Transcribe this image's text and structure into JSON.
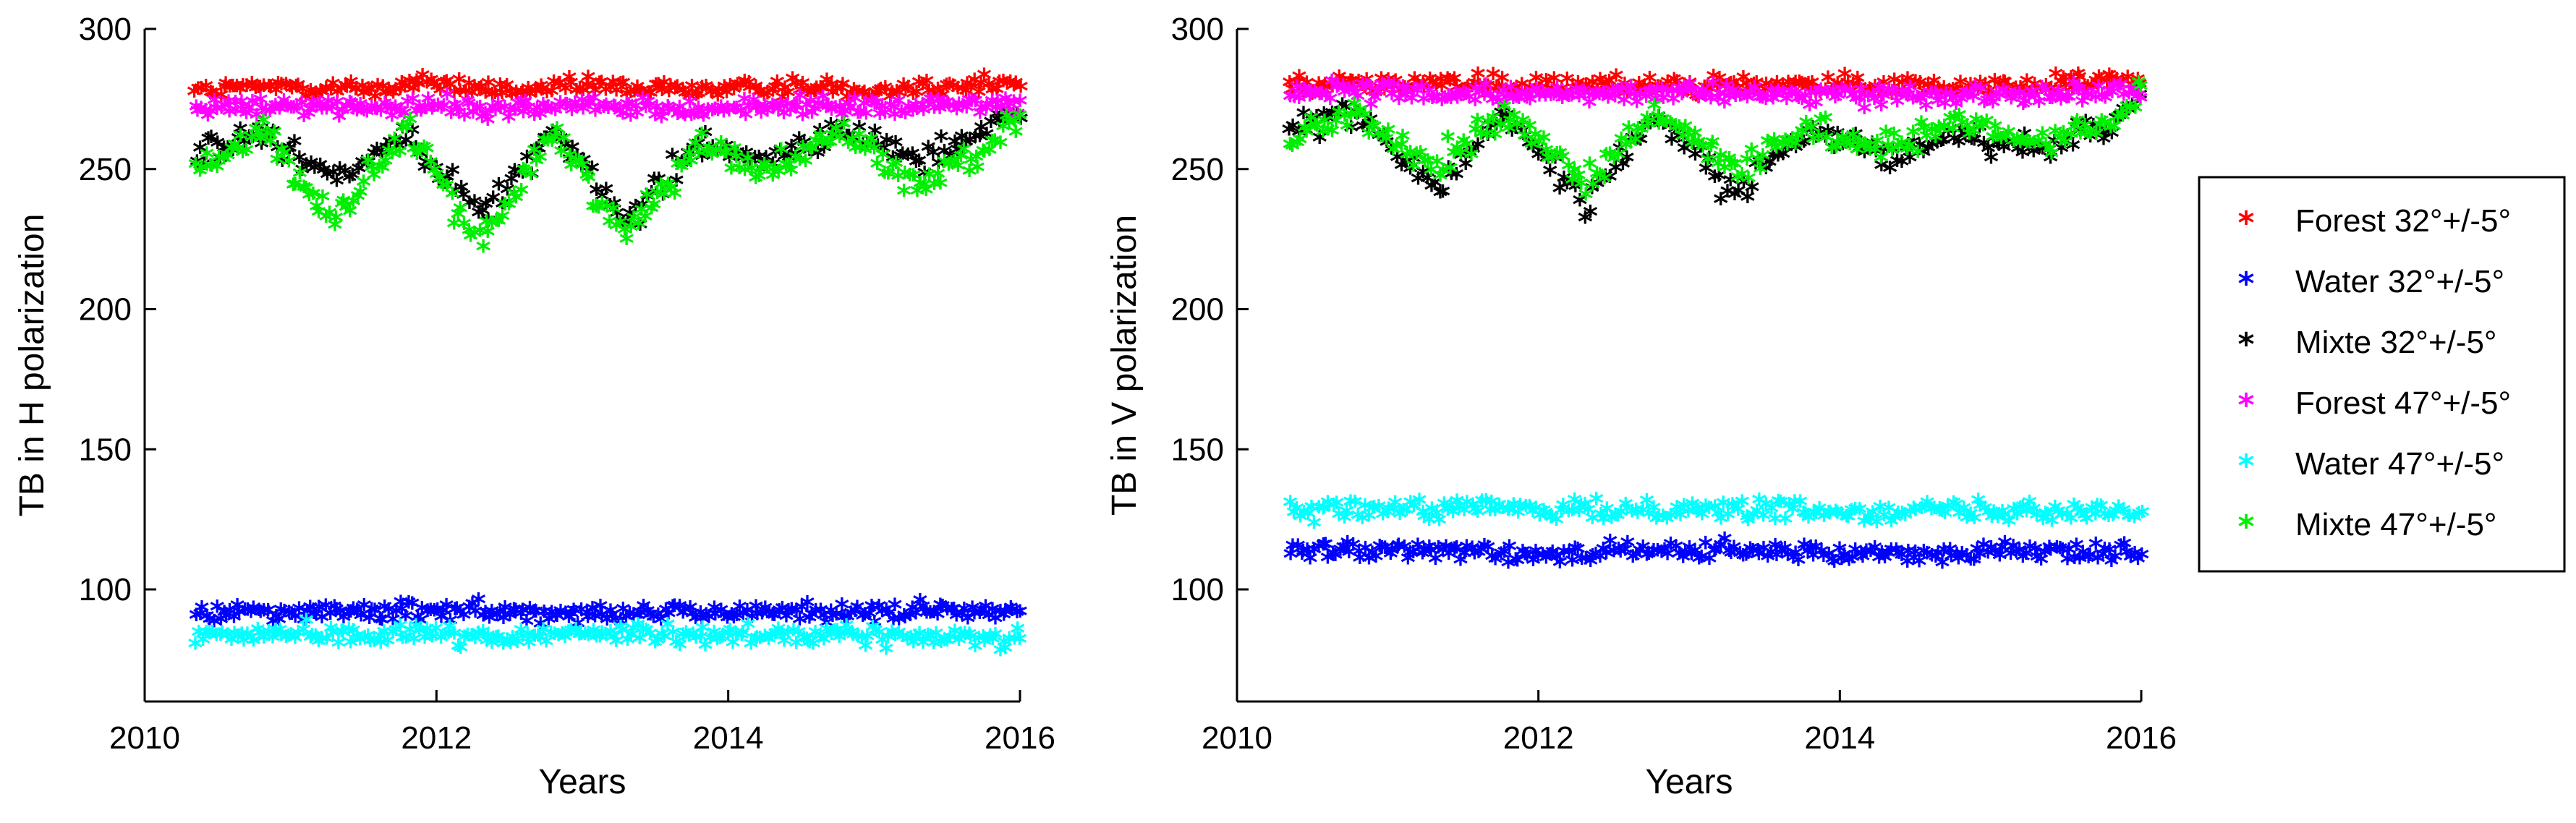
{
  "chart_data": [
    {
      "type": "scatter",
      "xlabel": "Years",
      "ylabel": "TB in H polarization",
      "xlim": [
        2010,
        2016
      ],
      "ylim": [
        60,
        300
      ],
      "xticks": [
        "2010",
        "2012",
        "2014",
        "2016"
      ],
      "yticks": [
        "100",
        "150",
        "200",
        "250",
        "300"
      ],
      "series": [
        {
          "name": "Forest 32°+/-5°",
          "color": "#ff0000",
          "marker": "*",
          "x": [
            2010.35,
            2011.0,
            2011.5,
            2012.0,
            2012.5,
            2013.0,
            2013.5,
            2014.0,
            2014.5,
            2015.0,
            2015.5,
            2016.0
          ],
          "y": [
            276,
            278,
            277,
            279,
            276,
            278,
            277,
            277,
            278,
            277,
            278,
            279
          ]
        },
        {
          "name": "Water 32°+/-5°",
          "color": "#0000ff",
          "marker": "*",
          "x": [
            2010.35,
            2011.0,
            2011.5,
            2012.0,
            2012.5,
            2013.0,
            2013.5,
            2014.0,
            2014.5,
            2015.0,
            2015.5,
            2016.0
          ],
          "y": [
            90,
            91,
            90,
            91,
            90,
            91,
            90,
            90,
            91,
            90,
            91,
            90
          ]
        },
        {
          "name": "Mixte 32°+/-5°",
          "color": "#000000",
          "marker": "*",
          "x": [
            2010.35,
            2010.8,
            2011.3,
            2011.8,
            2012.3,
            2012.8,
            2013.3,
            2013.8,
            2014.3,
            2014.8,
            2015.3,
            2015.8,
            2016.0
          ],
          "y": [
            253,
            262,
            245,
            262,
            232,
            262,
            230,
            258,
            252,
            262,
            253,
            262,
            270
          ]
        },
        {
          "name": "Forest 47°+/-5°",
          "color": "#ff00ff",
          "marker": "*",
          "x": [
            2010.35,
            2011.0,
            2011.5,
            2012.0,
            2012.5,
            2013.0,
            2013.5,
            2014.0,
            2014.5,
            2015.0,
            2015.5,
            2016.0
          ],
          "y": [
            270,
            271,
            270,
            271,
            270,
            271,
            270,
            270,
            271,
            270,
            271,
            272
          ]
        },
        {
          "name": "Water 47°+/-5°",
          "color": "#00ffff",
          "marker": "*",
          "x": [
            2010.35,
            2011.0,
            2011.5,
            2012.0,
            2012.5,
            2013.0,
            2013.5,
            2014.0,
            2014.5,
            2015.0,
            2015.5,
            2016.0
          ],
          "y": [
            82,
            83,
            82,
            83,
            81,
            83,
            82,
            83,
            82,
            82,
            81,
            82
          ]
        },
        {
          "name": "Mixte 47°+/-5°",
          "color": "#00ee00",
          "marker": "*",
          "x": [
            2010.35,
            2010.8,
            2011.3,
            2011.8,
            2012.3,
            2012.8,
            2013.3,
            2013.8,
            2014.3,
            2014.8,
            2015.3,
            2015.8,
            2016.0
          ],
          "y": [
            248,
            262,
            230,
            262,
            222,
            262,
            225,
            258,
            248,
            262,
            242,
            258,
            268
          ]
        }
      ]
    },
    {
      "type": "scatter",
      "xlabel": "Years",
      "ylabel": "TB in V polarization",
      "xlim": [
        2010,
        2016
      ],
      "ylim": [
        60,
        300
      ],
      "xticks": [
        "2010",
        "2012",
        "2014",
        "2016"
      ],
      "yticks": [
        "100",
        "150",
        "200",
        "250",
        "300"
      ],
      "series": [
        {
          "name": "Forest 32°+/-5°",
          "color": "#ff0000",
          "marker": "*",
          "x": [
            2010.35,
            2011.0,
            2011.5,
            2012.0,
            2012.5,
            2013.0,
            2013.5,
            2014.0,
            2014.5,
            2015.0,
            2015.5,
            2016.0
          ],
          "y": [
            279,
            279,
            278,
            278,
            278,
            279,
            278,
            278,
            278,
            278,
            279,
            280
          ]
        },
        {
          "name": "Water 32°+/-5°",
          "color": "#0000ff",
          "marker": "*",
          "x": [
            2010.35,
            2011.0,
            2011.5,
            2012.0,
            2012.5,
            2013.0,
            2013.5,
            2014.0,
            2014.5,
            2015.0,
            2015.5,
            2016.0
          ],
          "y": [
            112,
            112,
            113,
            111,
            112,
            112,
            112,
            111,
            112,
            112,
            112,
            111
          ]
        },
        {
          "name": "Mixte 32°+/-5°",
          "color": "#000000",
          "marker": "*",
          "x": [
            2010.35,
            2010.8,
            2011.3,
            2011.8,
            2012.3,
            2012.8,
            2013.3,
            2013.8,
            2014.3,
            2014.8,
            2015.3,
            2015.8,
            2016.0
          ],
          "y": [
            262,
            268,
            243,
            268,
            237,
            268,
            240,
            262,
            252,
            262,
            255,
            265,
            275
          ]
        },
        {
          "name": "Forest 47°+/-5°",
          "color": "#ff00ff",
          "marker": "*",
          "x": [
            2010.35,
            2011.0,
            2011.5,
            2012.0,
            2012.5,
            2013.0,
            2013.5,
            2014.0,
            2014.5,
            2015.0,
            2015.5,
            2016.0
          ],
          "y": [
            276,
            276,
            275,
            275,
            275,
            276,
            275,
            275,
            275,
            275,
            276,
            277
          ]
        },
        {
          "name": "Water 47°+/-5°",
          "color": "#00ffff",
          "marker": "*",
          "x": [
            2010.35,
            2011.0,
            2011.5,
            2012.0,
            2012.5,
            2013.0,
            2013.5,
            2014.0,
            2014.5,
            2015.0,
            2015.5,
            2016.0
          ],
          "y": [
            127,
            127,
            128,
            126,
            127,
            127,
            127,
            126,
            127,
            127,
            127,
            126
          ]
        },
        {
          "name": "Mixte 47°+/-5°",
          "color": "#00ee00",
          "marker": "*",
          "x": [
            2010.35,
            2010.8,
            2011.3,
            2011.8,
            2012.3,
            2012.8,
            2013.3,
            2013.8,
            2014.3,
            2014.8,
            2015.3,
            2015.8,
            2016.0
          ],
          "y": [
            258,
            268,
            250,
            268,
            243,
            268,
            248,
            262,
            255,
            265,
            257,
            265,
            275
          ]
        }
      ]
    }
  ],
  "legend": {
    "placement": "right",
    "entries": [
      {
        "label": "Forest 32°+/-5°",
        "color": "#ff0000"
      },
      {
        "label": "Water 32°+/-5°",
        "color": "#0000ff"
      },
      {
        "label": "Mixte 32°+/-5°",
        "color": "#000000"
      },
      {
        "label": "Forest 47°+/-5°",
        "color": "#ff00ff"
      },
      {
        "label": "Water 47°+/-5°",
        "color": "#00ffff"
      },
      {
        "label": "Mixte 47°+/-5°",
        "color": "#00ee00"
      }
    ]
  }
}
